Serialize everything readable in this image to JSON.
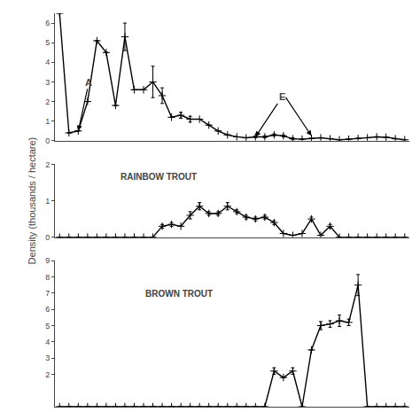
{
  "chart_data": [
    {
      "type": "line",
      "color": "black",
      "marker": "plus",
      "grid": false,
      "tick_labels": "y",
      "categories": [
        null,
        null,
        null,
        null,
        null,
        null,
        null,
        null,
        null,
        null,
        null,
        null,
        null,
        null,
        null,
        null,
        null,
        null,
        null,
        null,
        null,
        null,
        null,
        null,
        null,
        null,
        null,
        null,
        null,
        null,
        null,
        null,
        null,
        null,
        null,
        null,
        null,
        null
      ],
      "values": [
        6.5,
        0.4,
        0.5,
        2.0,
        5.1,
        4.5,
        1.8,
        5.3,
        2.6,
        2.6,
        3.0,
        2.3,
        1.2,
        1.3,
        1.1,
        1.1,
        0.8,
        0.5,
        0.3,
        0.2,
        0.15,
        0.2,
        0.2,
        0.3,
        0.25,
        0.1,
        0.08,
        0.12,
        0.15,
        0.1,
        0.05,
        0.08,
        0.12,
        0.15,
        0.2,
        0.18,
        0.1,
        0.05
      ],
      "yerr": [
        0,
        0,
        0,
        0,
        0,
        0,
        0,
        0.7,
        0,
        0,
        0.8,
        0.4,
        0,
        0.15,
        0.15,
        0,
        0,
        0,
        0,
        0,
        0,
        0.05,
        0.05,
        0.05,
        0.05,
        0.05,
        0,
        0,
        0,
        0,
        0,
        0,
        0,
        0,
        0,
        0,
        0,
        0
      ],
      "ylim": [
        0,
        6.5
      ],
      "yticks": [
        0,
        1,
        2,
        3,
        4,
        5,
        6
      ],
      "annotations": [
        {
          "text": "A",
          "x": 2,
          "y": 0.5
        },
        {
          "text": "E",
          "x": [
            21,
            27
          ],
          "y": [
            0.2,
            0.25
          ]
        }
      ]
    },
    {
      "type": "line",
      "color": "black",
      "marker": "plus",
      "grid": false,
      "tick_labels": "y",
      "title": "RAINBOW TROUT",
      "ylabel": "Density (thousands / hectare)",
      "categories": [
        null,
        null,
        null,
        null,
        null,
        null,
        null,
        null,
        null,
        null,
        null,
        null,
        null,
        null,
        null,
        null,
        null,
        null,
        null,
        null,
        null,
        null,
        null,
        null,
        null,
        null,
        null,
        null,
        null,
        null,
        null,
        null,
        null,
        null,
        null,
        null,
        null,
        null
      ],
      "values": [
        0.0,
        0.0,
        0.0,
        0.0,
        0.0,
        0.0,
        0.0,
        0.0,
        0.0,
        0.0,
        0.0,
        0.3,
        0.35,
        0.3,
        0.6,
        0.85,
        0.65,
        0.65,
        0.85,
        0.7,
        0.55,
        0.5,
        0.55,
        0.4,
        0.1,
        0.05,
        0.1,
        0.5,
        0.05,
        0.3,
        0.0,
        0.0,
        0.0,
        0.0,
        0.0,
        0.0,
        0.0,
        0.0
      ],
      "yerr": [
        0,
        0,
        0,
        0,
        0,
        0,
        0,
        0,
        0,
        0,
        0,
        0.05,
        0.05,
        0,
        0.1,
        0.1,
        0.05,
        0.05,
        0.1,
        0.05,
        0.05,
        0.05,
        0.05,
        0.05,
        0,
        0,
        0,
        0.05,
        0,
        0.05,
        0,
        0,
        0,
        0,
        0,
        0,
        0,
        0
      ],
      "ylim": [
        0,
        2
      ],
      "yticks": [
        0,
        1,
        2
      ]
    },
    {
      "type": "line",
      "color": "black",
      "marker": "plus",
      "grid": false,
      "tick_labels": "y",
      "title": "BROWN TROUT",
      "categories": [
        null,
        null,
        null,
        null,
        null,
        null,
        null,
        null,
        null,
        null,
        null,
        null,
        null,
        null,
        null,
        null,
        null,
        null,
        null,
        null,
        null,
        null,
        null,
        null,
        null,
        null,
        null,
        null,
        null,
        null,
        null,
        null,
        null,
        null,
        null,
        null,
        null,
        null
      ],
      "values": [
        0.0,
        0.0,
        0.0,
        0.0,
        0.0,
        0.0,
        0.0,
        0.0,
        0.0,
        0.0,
        0.0,
        0.0,
        0.0,
        0.0,
        0.0,
        0.0,
        0.0,
        0.0,
        0.0,
        0.0,
        0.0,
        0.0,
        0.0,
        2.2,
        1.8,
        2.2,
        0.0,
        3.5,
        5.0,
        5.1,
        5.3,
        5.2,
        7.5,
        0.0,
        0.0,
        0.0,
        0.0,
        0.0
      ],
      "yerr": [
        0,
        0,
        0,
        0,
        0,
        0,
        0,
        0,
        0,
        0,
        0,
        0,
        0,
        0,
        0,
        0,
        0,
        0,
        0,
        0,
        0,
        0,
        0,
        0.2,
        0,
        0.2,
        0,
        0,
        0.25,
        0.2,
        0.35,
        0.2,
        0.65,
        0,
        0,
        0,
        0,
        0
      ],
      "ylim": [
        0,
        9
      ],
      "yticks": [
        2,
        3,
        4,
        5,
        6,
        7,
        8,
        9
      ]
    }
  ]
}
